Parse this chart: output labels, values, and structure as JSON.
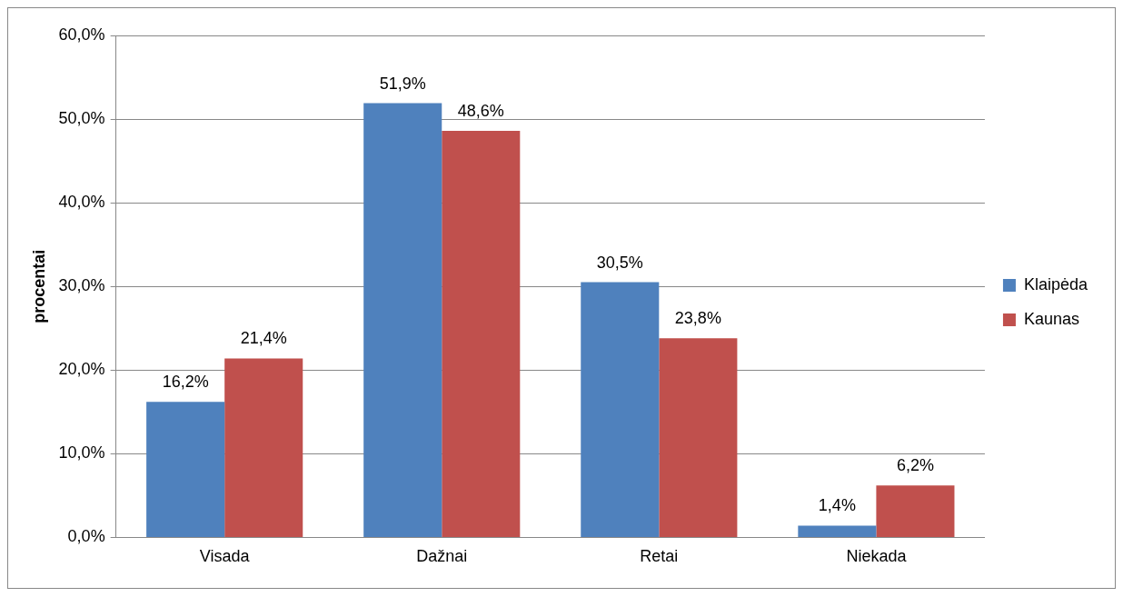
{
  "chart_data": {
    "type": "bar",
    "ylabel": "procentai",
    "categories": [
      "Visada",
      "Dažnai",
      "Retai",
      "Niekada"
    ],
    "series": [
      {
        "name": "Klaipėda",
        "color": "#4f81bd",
        "values": [
          16.2,
          51.9,
          30.5,
          1.4
        ],
        "value_labels": [
          "16,2%",
          "51,9%",
          "30,5%",
          "1,4%"
        ]
      },
      {
        "name": "Kaunas",
        "color": "#c0504d",
        "values": [
          21.4,
          48.6,
          23.8,
          6.2
        ],
        "value_labels": [
          "21,4%",
          "48,6%",
          "23,8%",
          "6,2%"
        ]
      }
    ],
    "ylim": [
      0,
      60
    ],
    "yticks": [
      {
        "value": 0,
        "label": "0,0%"
      },
      {
        "value": 10,
        "label": "10,0%"
      },
      {
        "value": 20,
        "label": "20,0%"
      },
      {
        "value": 30,
        "label": "30,0%"
      },
      {
        "value": 40,
        "label": "40,0%"
      },
      {
        "value": 50,
        "label": "50,0%"
      },
      {
        "value": 60,
        "label": "60,0%"
      }
    ],
    "grid": "y",
    "legend": "right"
  }
}
